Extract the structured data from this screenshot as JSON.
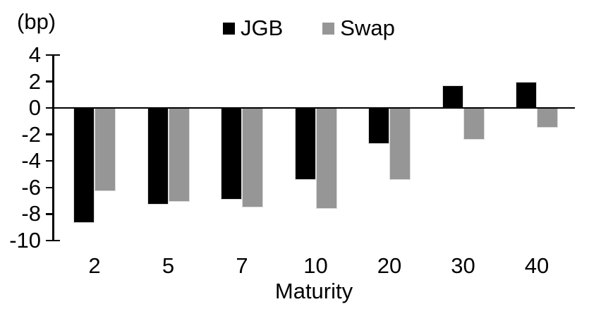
{
  "chart_data": {
    "type": "bar",
    "title": "",
    "unit_label": "(bp)",
    "xlabel": "Maturity",
    "ylabel": "",
    "categories": [
      "2",
      "5",
      "7",
      "10",
      "20",
      "30",
      "40"
    ],
    "series": [
      {
        "name": "JGB",
        "color": "#000000",
        "values": [
          -8.7,
          -7.3,
          -6.9,
          -5.4,
          -2.7,
          1.7,
          2.0
        ]
      },
      {
        "name": "Swap",
        "color": "#969696",
        "values": [
          -6.3,
          -7.1,
          -7.5,
          -7.6,
          -5.4,
          -2.4,
          -1.5
        ]
      }
    ],
    "y_ticks": [
      4,
      2,
      0,
      -2,
      -4,
      -6,
      -8,
      -10
    ],
    "ylim": [
      -10,
      4
    ],
    "grid": false,
    "legend_position": "top-center",
    "axis_color": "#000000"
  }
}
